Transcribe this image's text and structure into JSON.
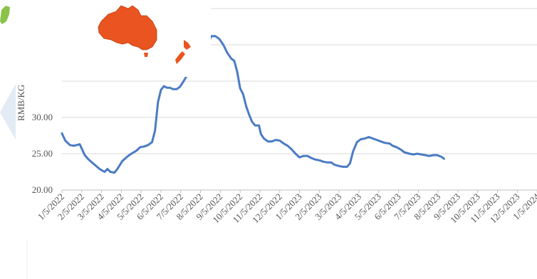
{
  "chart_data": {
    "type": "line",
    "ylabel": "RMB/KG",
    "ylim": [
      20,
      45
    ],
    "yticks": [
      20,
      25,
      30
    ],
    "ytick_labels": [
      "20.00",
      "25.00",
      "30.00"
    ],
    "grid": true,
    "categories": [
      "1/5/2022",
      "2/5/2022",
      "3/5/2022",
      "4/5/2022",
      "5/5/2022",
      "6/5/2022",
      "7/5/2022",
      "8/5/2022",
      "9/5/2022",
      "10/5/2022",
      "11/5/2022",
      "12/5/2022",
      "1/5/2023",
      "2/5/2023",
      "3/5/2023",
      "4/5/2023",
      "5/5/2023",
      "6/5/2023",
      "7/5/2023",
      "8/5/2023",
      "9/5/2023",
      "10/5/2023",
      "11/5/2023",
      "12/5/2023",
      "1/5/2024"
    ],
    "series": [
      {
        "color": "#4a7bc4",
        "points": [
          [
            0,
            27.8
          ],
          [
            0.17,
            26.8
          ],
          [
            0.4,
            26.2
          ],
          [
            0.6,
            26.1
          ],
          [
            0.9,
            26.3
          ],
          [
            1.15,
            24.8
          ],
          [
            1.35,
            24.2
          ],
          [
            1.6,
            23.6
          ],
          [
            1.9,
            22.9
          ],
          [
            2.15,
            22.5
          ],
          [
            2.3,
            22.9
          ],
          [
            2.45,
            22.5
          ],
          [
            2.65,
            22.4
          ],
          [
            2.8,
            22.9
          ],
          [
            3.05,
            24.0
          ],
          [
            3.3,
            24.6
          ],
          [
            3.5,
            25.0
          ],
          [
            3.75,
            25.4
          ],
          [
            3.95,
            25.9
          ],
          [
            4.15,
            26.0
          ],
          [
            4.35,
            26.2
          ],
          [
            4.55,
            26.6
          ],
          [
            4.7,
            28.2
          ],
          [
            4.85,
            32.1
          ],
          [
            5.0,
            33.8
          ],
          [
            5.15,
            34.3
          ],
          [
            5.3,
            34.1
          ],
          [
            5.45,
            34.1
          ],
          [
            5.6,
            33.9
          ],
          [
            5.8,
            33.9
          ],
          [
            5.95,
            34.2
          ],
          [
            6.1,
            34.8
          ],
          [
            6.3,
            35.7
          ],
          [
            6.5,
            35.9
          ],
          [
            6.7,
            36.3
          ],
          [
            6.9,
            36.7
          ],
          [
            7.1,
            37.5
          ],
          [
            7.25,
            38.8
          ],
          [
            7.4,
            40.4
          ],
          [
            7.55,
            41.2
          ],
          [
            7.75,
            41.2
          ],
          [
            7.95,
            40.8
          ],
          [
            8.15,
            40.0
          ],
          [
            8.35,
            38.9
          ],
          [
            8.55,
            38.1
          ],
          [
            8.7,
            37.8
          ],
          [
            8.85,
            36.3
          ],
          [
            9.0,
            34.0
          ],
          [
            9.15,
            33.2
          ],
          [
            9.3,
            31.6
          ],
          [
            9.45,
            30.4
          ],
          [
            9.6,
            29.4
          ],
          [
            9.75,
            28.9
          ],
          [
            9.95,
            28.9
          ],
          [
            10.05,
            27.7
          ],
          [
            10.2,
            27.1
          ],
          [
            10.4,
            26.7
          ],
          [
            10.6,
            26.7
          ],
          [
            10.8,
            26.9
          ],
          [
            11.0,
            26.8
          ],
          [
            11.2,
            26.4
          ],
          [
            11.4,
            26.1
          ],
          [
            11.6,
            25.6
          ],
          [
            11.8,
            25.0
          ],
          [
            12.0,
            24.5
          ],
          [
            12.2,
            24.7
          ],
          [
            12.4,
            24.7
          ],
          [
            12.6,
            24.4
          ],
          [
            12.8,
            24.2
          ],
          [
            13.0,
            24.1
          ],
          [
            13.2,
            23.9
          ],
          [
            13.4,
            23.8
          ],
          [
            13.6,
            23.8
          ],
          [
            13.75,
            23.5
          ],
          [
            14.0,
            23.3
          ],
          [
            14.2,
            23.2
          ],
          [
            14.4,
            23.2
          ],
          [
            14.55,
            23.7
          ],
          [
            14.7,
            25.3
          ],
          [
            14.9,
            26.6
          ],
          [
            15.1,
            27.0
          ],
          [
            15.3,
            27.1
          ],
          [
            15.5,
            27.3
          ],
          [
            15.7,
            27.1
          ],
          [
            15.9,
            26.9
          ],
          [
            16.1,
            26.7
          ],
          [
            16.3,
            26.5
          ],
          [
            16.55,
            26.4
          ],
          [
            16.7,
            26.1
          ],
          [
            16.9,
            25.9
          ],
          [
            17.1,
            25.6
          ],
          [
            17.3,
            25.2
          ],
          [
            17.55,
            25.0
          ],
          [
            17.75,
            24.9
          ],
          [
            17.95,
            25.0
          ],
          [
            18.15,
            24.9
          ],
          [
            18.35,
            24.8
          ],
          [
            18.55,
            24.7
          ],
          [
            18.75,
            24.8
          ],
          [
            18.95,
            24.8
          ],
          [
            19.15,
            24.6
          ],
          [
            19.3,
            24.3
          ]
        ]
      }
    ]
  },
  "map_inset": {
    "description_colors": {
      "australia": "#e95420",
      "new_zealand": "#e95420",
      "green_land": "#8bc34a"
    }
  }
}
